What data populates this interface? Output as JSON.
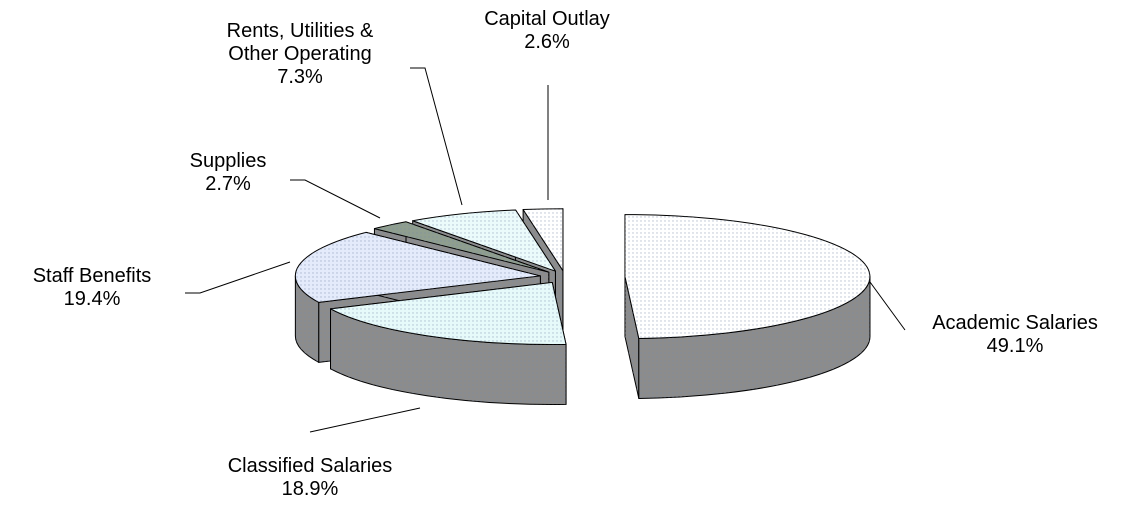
{
  "chart_data": {
    "type": "pie",
    "categories": [
      "Academic Salaries",
      "Classified Salaries",
      "Staff Benefits",
      "Supplies",
      "Rents, Utilities & Other Operating",
      "Capital Outlay"
    ],
    "values": [
      49.1,
      18.9,
      19.4,
      2.7,
      7.3,
      2.6
    ],
    "value_labels": [
      "49.1%",
      "18.9%",
      "19.4%",
      "2.7%",
      "7.3%",
      "2.6%"
    ],
    "colors": [
      "#ffffff",
      "#e6fafa",
      "#e4ebfb",
      "#8f9e8f",
      "#ebfbfb",
      "#ffffff"
    ],
    "side_color": "#8c8c8c"
  }
}
